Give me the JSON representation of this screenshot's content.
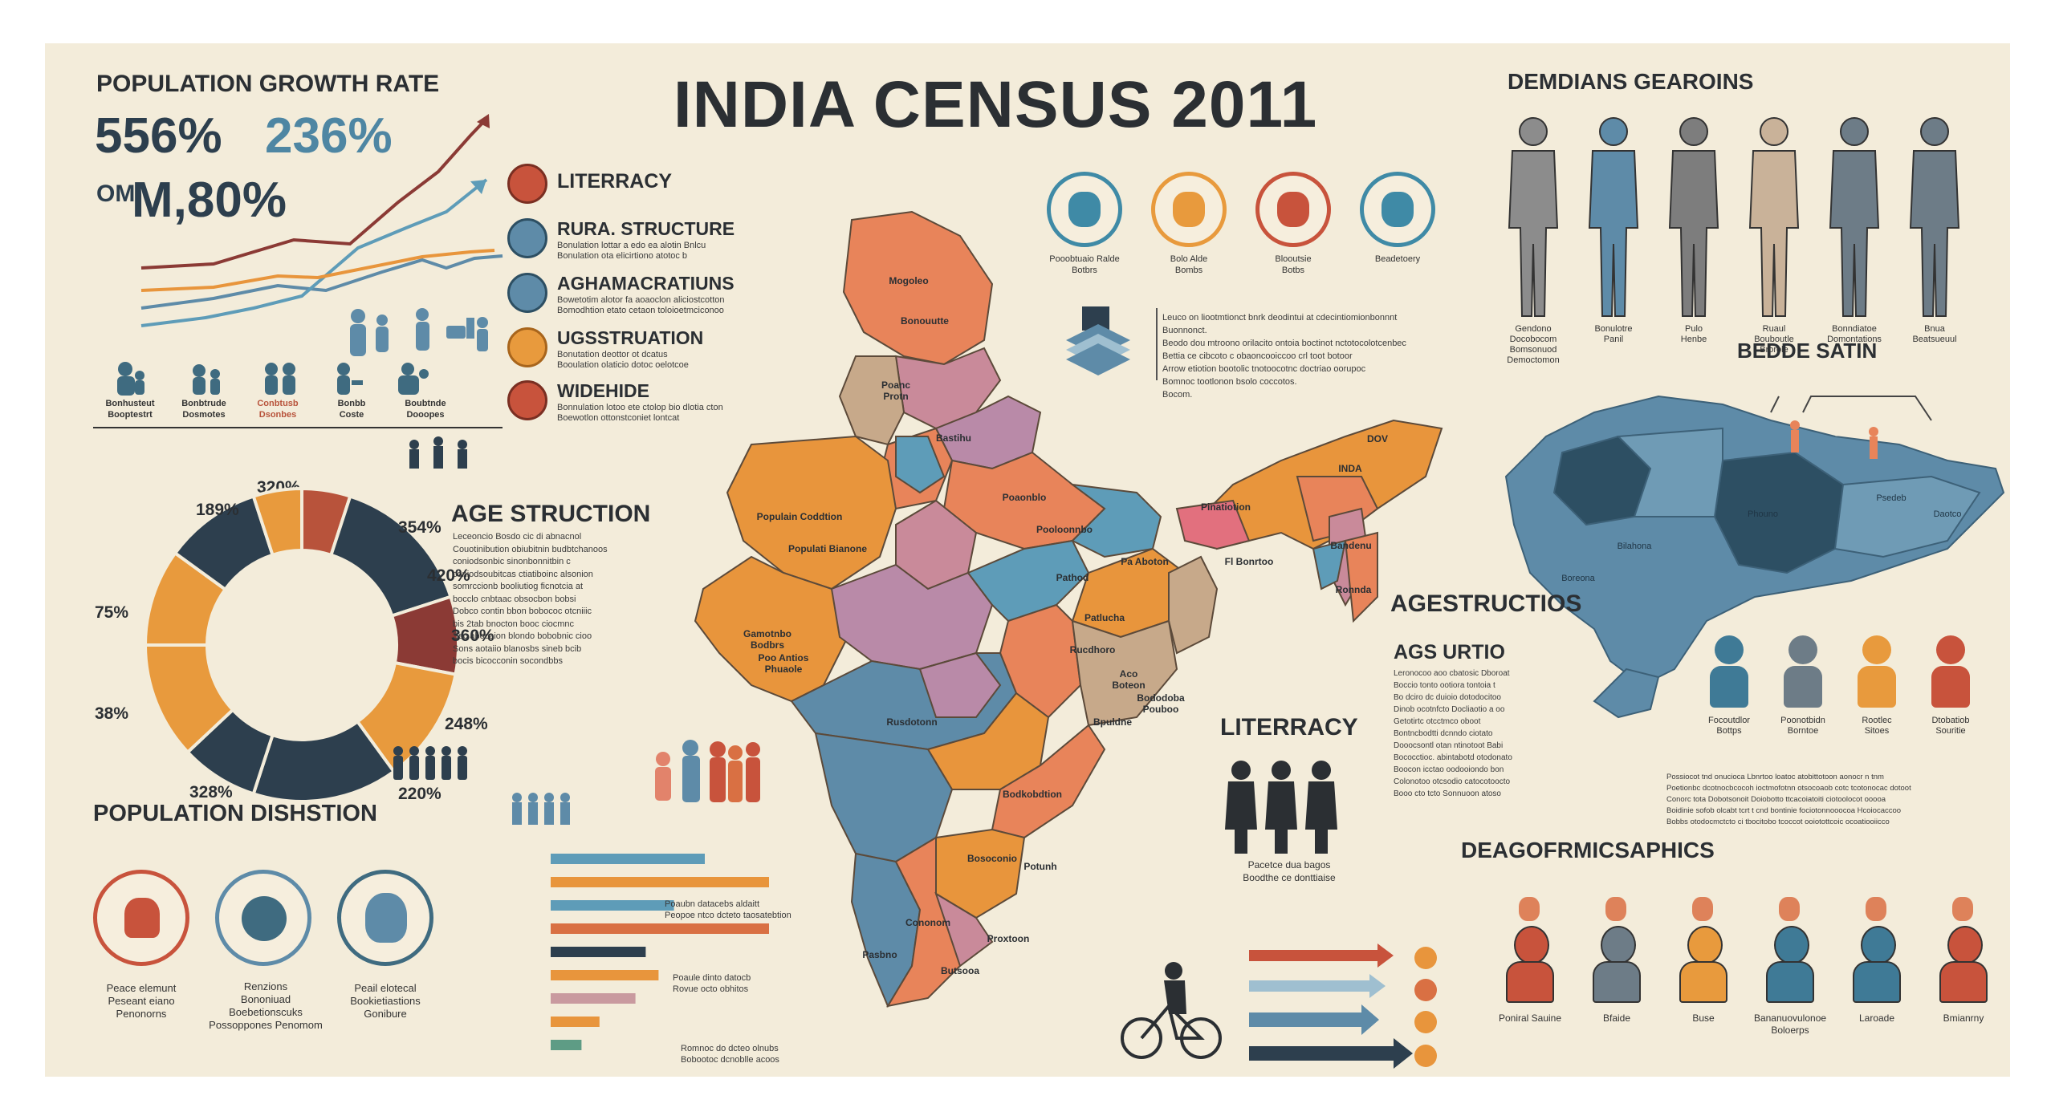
{
  "title": "INDIA CENSUS 2011",
  "growth": {
    "heading": "POPULATION GROWTH RATE",
    "stat1": "556%",
    "stat2": "236%",
    "stat3a": "OMI",
    "stat3b": "M,80%",
    "icon_labels": [
      "Bonhusteut\nBooptestrt",
      "Bonbtrude\nDosmotes",
      "Conbtusb\nDsonbes",
      "Bonbb\nCoste",
      "Boubtnde\nDooopes"
    ]
  },
  "donut": {
    "segments": [
      {
        "label": "320%",
        "value": 5,
        "color": "#b8533b"
      },
      {
        "label": "354%",
        "value": 15,
        "color": "#2d3f4e"
      },
      {
        "label": "420%",
        "value": 8,
        "color": "#8b3a35"
      },
      {
        "label": "360%",
        "value": 12,
        "color": "#e89a3d"
      },
      {
        "label": "248%",
        "value": 15,
        "color": "#2d3f4e"
      },
      {
        "label": "220%",
        "value": 8,
        "color": "#2d3f4e"
      },
      {
        "label": "328%",
        "value": 12,
        "color": "#e89a3d"
      },
      {
        "label": "38%",
        "value": 10,
        "color": "#e89a3d"
      },
      {
        "label": "75%",
        "value": 10,
        "color": "#2d3f4e"
      },
      {
        "label": "189%",
        "value": 5,
        "color": "#e89a3d"
      }
    ]
  },
  "legend": {
    "items": [
      {
        "label": "LITERRACY",
        "color": "#c8533c",
        "text": ""
      },
      {
        "label": "RURA. STRUCTURE",
        "color": "#5e8ba8",
        "text": "Bonulation lottar a edo ea alotin Bnlcu\nBonulation ota elicirtiono atotoc b"
      },
      {
        "label": "AGHAMACRATIUNS",
        "color": "#5e8ba8",
        "text": "Bowetotim alotor fa aoaoclon aliciostcotton\nBomodhtion etato cetaon toloioetmciconoo"
      },
      {
        "label": "UGSSTRUATION",
        "color": "#e89a3d",
        "text": "Bonutation deottor ot dcatus\nBooulation olaticio dotoc oelotcoe"
      },
      {
        "label": "WIDEHIDE",
        "color": "#c8533c",
        "text": "Bonnulation lotoo ete ctolop bio dlotia cton\nBoewotlon ottonstconiet lontcat"
      }
    ]
  },
  "age_left": {
    "heading": "AGE STRUCTION",
    "text": "Leceoncio  Bosdo  cic  di abnacnol\nCouotinibution  obiubitnin  budbtchanoos\nconiodsonbic  sinonbonnitbin  c\nconiodsoubitcas  ctiatiboinc  alsonion\nsomrccionb  booliutiog  ficnotcia  at\nbocclo  cnbtaac  obsocbon  bobsi\nDobco contin bbon  bobococ  otcniiic\nbis  2tab  bnocton  booc  ciocmnc\nSsc  abocaion  blondo  bobobnic  cioo\nSons aotaiio blanosbs  sineb  bcib\nbocis bicocconin socondbbs"
  },
  "distribution": {
    "heading": "POPULATION DISHSTION",
    "items": [
      {
        "caption": "Peace elemunt\nPeseant eiano\nPenonorns",
        "color": "#c8533c"
      },
      {
        "caption": "Renzions\nBononiuad\nBoebetionscuks\nPossoppones Penomom",
        "color": "#5e8ba8"
      },
      {
        "caption": "Peail elotecal\nBookietiastions\nGonibure",
        "color": "#3f6b80"
      }
    ]
  },
  "bars": {
    "items": [
      {
        "color": "#5e9cb8",
        "value": 60
      },
      {
        "color": "#e8953c",
        "value": 85
      },
      {
        "color": "#5e9cb8",
        "value": 48
      },
      {
        "color": "#d97043",
        "value": 85
      },
      {
        "color": "#2d3f4e",
        "value": 37
      },
      {
        "color": "#e8953c",
        "value": 42
      },
      {
        "color": "#c99a9f",
        "value": 33
      },
      {
        "color": "#e8953c",
        "value": 19
      },
      {
        "color": "#5e9c85",
        "value": 12
      }
    ],
    "notes": [
      "Poaubn datacebs aldaitt\nPeopoe ntco dcteto taosatebtion",
      "Poaule dinto datocb\nRovue octo obhitos",
      "Romnoc do dcteo olnubs\nBobootoc dcnoblle acoos"
    ]
  },
  "map": {
    "labels": [
      "Mogoleo",
      "Bonouutte",
      "Poanc\nProtn",
      "Bastihu",
      "Populain Coddtion",
      "Populati Bianone",
      "Poaonblo",
      "Pooloonnbo",
      "Gamotnbo\nBodbrs",
      "Poo Antios\nPhuaole",
      "Pa Aboton",
      "Pathod",
      "Fl Bonrtoo",
      "Patlucha",
      "Rucdhoro",
      "Aco\nBoteon",
      "Bododoba\nPouboo",
      "Bpuldne",
      "Rusdotonn",
      "Bodkobdtion",
      "Bosoconio",
      "Cononom",
      "Pasbno",
      "Butsooa",
      "Potunh",
      "Proxtoon"
    ],
    "ne_labels": [
      "DOV",
      "INDA",
      "Pinatiotion",
      "Bandenu",
      "Ronnda"
    ]
  },
  "top_icons": {
    "items": [
      {
        "label": "Pooobtuaio Ralde\nBotbrs",
        "color": "#3f8aa6"
      },
      {
        "label": "Bolo Alde\nBombs",
        "color": "#e89a3d"
      },
      {
        "label": "Blooutsie\nBotbs",
        "color": "#c8533c"
      },
      {
        "label": "Beadetoery",
        "color": "#3f8aa6"
      }
    ],
    "paragraph": "Leuco on liootmtionct bnrk deodintui at cdecintiomionbonnnt\nBuonnonct.\nBeodo dou mtroono orilacito ontoia boctinot  nctotocolotcenbec\nBettia ce cibcoto c obaoncooiccoo crl toot botoor\nArrow etiotion bootolic tnotoocotnc doctriao oorupoc\nBomnoc tootlonon bsolo coccotos.\nBocom."
  },
  "demographics_top": {
    "heading": "DEMDIANS GEAROINS",
    "figures": [
      {
        "label": "Gendono\nDocobocom\nBomsonuod\nDemoctomon",
        "color": "#8c8c8c"
      },
      {
        "label": "Bonulotre\nPanil",
        "color": "#5e8ba8"
      },
      {
        "label": "Pulo\nHenbe",
        "color": "#7d7d7d"
      },
      {
        "label": "Ruaul\nBouboutle\nBrorole",
        "color": "#c9b299"
      },
      {
        "label": "Bonndiatoe\nDomontations",
        "color": "#6d7c87"
      },
      {
        "label": "Bnua\nBeatsueuul",
        "color": "#6d7c87"
      }
    ]
  },
  "region_map": {
    "heading": "BEDDE SATIN",
    "labels": [
      "Boreona",
      "Bilahona",
      "Phouno",
      "Psedeb",
      "Daotco"
    ]
  },
  "agestructios": {
    "heading": "AGESTRUCTIOS",
    "subheading": "AGS URTIO",
    "text": "Leronocoo aoo cbatosic Dboroat\nBoccio tonto ootiora tontoia t\nBo dciro dc duioio dotodocitoo\nDinob ocotnfcto Docliaotio a oo\nGetotirtc  otcctmco  oboot\nBontncbodtti dcnndo  ciotato\nDooocsontl otan  ntinotoot  Babi\nBococctioc. abintabotd otodonato\nBoocon  icctao oodooiondo bon\nColonotoo otcsodio catocotoocto\nBooo cto tcto Sonnuoon  atoso"
  },
  "literacy_right": {
    "heading": "LITERRACY",
    "caption": "Pacetce dua bagos\nBoodthe ce donttiaise"
  },
  "bottom_figures": {
    "items": [
      {
        "label": "Focoutdlor\nBottps",
        "color": "#3f7a96"
      },
      {
        "label": "Poonotbidn\nBorntoe",
        "color": "#6d7c87"
      },
      {
        "label": "Rootlec\nSitoes",
        "color": "#e89a3d"
      },
      {
        "label": "Dtobatiob\nSouritie",
        "color": "#c8533c"
      }
    ],
    "paragraph": "Possiocot  tnd  onucioca  Lbnrtoo loatoc atobittotoon aonocr  n tnm\nPoetionbc dcotnocbcocoh ioctmofotnn otsocoaob cotc tcotonocac dotoot\nConorc  tota Dobotsonoit  Doiobotto ttcacoiatoiti ciotoolocot ooooa\nBoidinie sofob olcabt tcrt t cnd bontinie fociotonnooocoa Hcoiocaccoo\nBobbs otodocmctcto ci tbocitobo tcoccot ooiotottcoic ocoatiooiicco"
  },
  "deagograms": {
    "heading": "DEAGOFRMICSAPHICS",
    "items": [
      {
        "label": "Poniral Sauine",
        "color": "#c8533c"
      },
      {
        "label": "Bfaide",
        "color": "#6d7c87"
      },
      {
        "label": "Buse",
        "color": "#e89a3d"
      },
      {
        "label": "Bananuovulonoe\nBoloerps",
        "color": "#3f7a96"
      },
      {
        "label": "Laroade",
        "color": "#3f7a96"
      },
      {
        "label": "Bmianrny",
        "color": "#c8533c"
      }
    ]
  }
}
